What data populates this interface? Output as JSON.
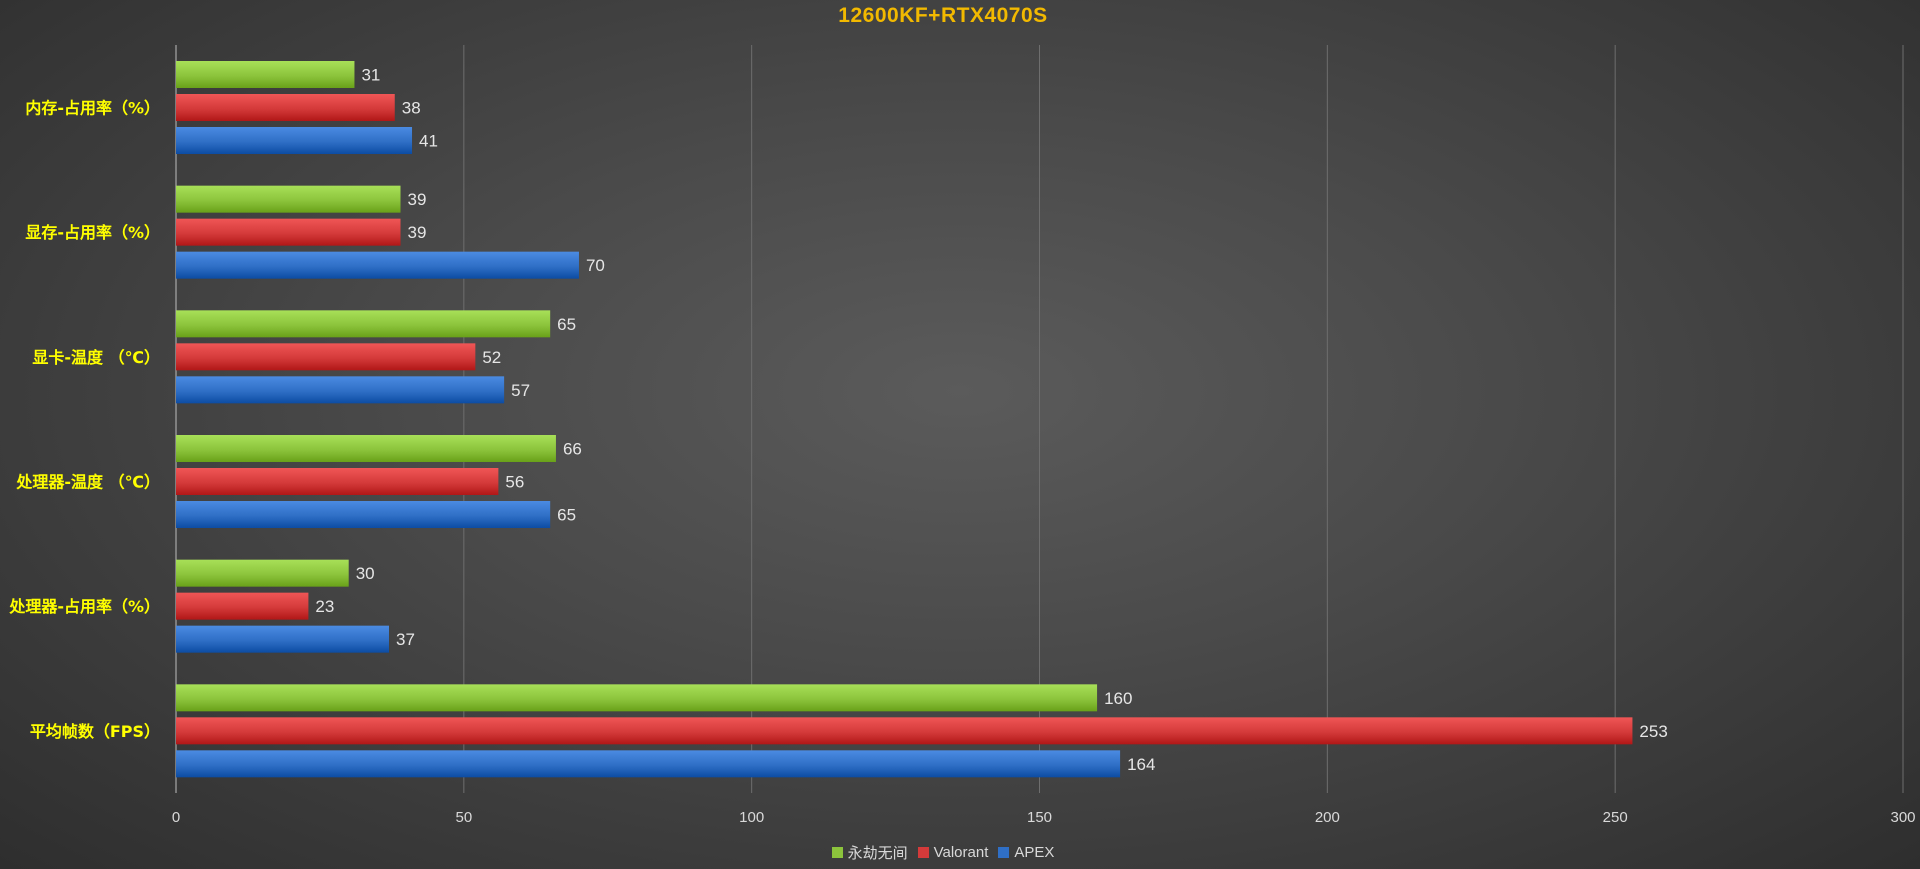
{
  "chart_data": {
    "type": "bar",
    "orientation": "horizontal",
    "title": "12600KF+RTX4070S",
    "categories": [
      "内存-占用率（%）",
      "显存-占用率（%）",
      "显卡-温度 （℃）",
      "处理器-温度 （℃）",
      "处理器-占用率（%）",
      "平均帧数（FPS）"
    ],
    "series": [
      {
        "name": "永劫无间",
        "color": "#8cc43c",
        "values": [
          31,
          39,
          65,
          66,
          30,
          160
        ]
      },
      {
        "name": "Valorant",
        "color": "#d43a3a",
        "values": [
          38,
          39,
          52,
          56,
          23,
          253
        ]
      },
      {
        "name": "APEX",
        "color": "#2f6fc6",
        "values": [
          41,
          70,
          57,
          65,
          37,
          164
        ]
      }
    ],
    "x_ticks": [
      "0",
      "50",
      "100",
      "150",
      "200",
      "250",
      "300"
    ],
    "xlim": [
      0,
      300
    ],
    "grid": true,
    "legend_position": "bottom",
    "category_label_color": "#ffff00",
    "title_color": "#f2b900"
  }
}
